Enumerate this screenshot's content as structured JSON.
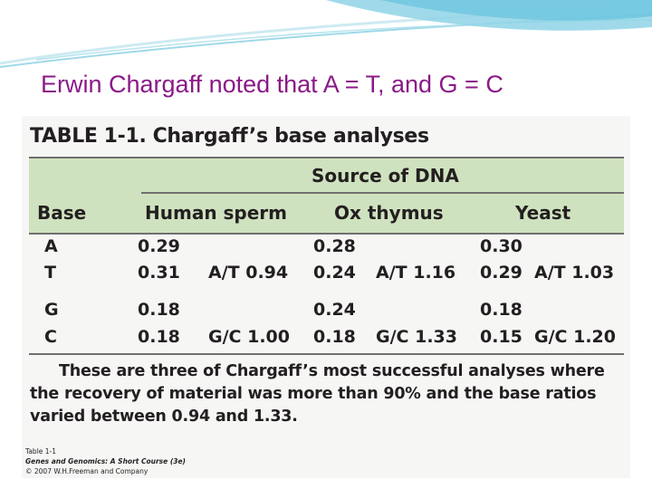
{
  "slide": {
    "title": "Erwin Chargaff noted that A = T, and G = C"
  },
  "table": {
    "label": "TABLE",
    "number": "1-1.",
    "name": "Chargaff’s base analyses",
    "source_header": "Source of DNA",
    "base_header": "Base",
    "columns": [
      "Human sperm",
      "Ox thymus",
      "Yeast"
    ],
    "rows": [
      {
        "base": "A",
        "values": [
          "0.29",
          "0.28",
          "0.30"
        ]
      },
      {
        "base": "T",
        "values": [
          "0.31",
          "0.24",
          "0.29"
        ]
      },
      {
        "base": "G",
        "values": [
          "0.18",
          "0.24",
          "0.18"
        ]
      },
      {
        "base": "C",
        "values": [
          "0.18",
          "0.18",
          "0.15"
        ]
      }
    ],
    "ratios": {
      "at": [
        "A/T 0.94",
        "A/T 1.16",
        "A/T 1.03"
      ],
      "gc": [
        "G/C 1.00",
        "G/C 1.33",
        "G/C 1.20"
      ]
    },
    "caption": "These are three of Chargaff’s most successful analyses where the recovery of material was more than 90% and the base ratios varied between 0.94 and 1.33."
  },
  "credits": {
    "line1": "Table 1-1",
    "line2": "Genes and Genomics: A Short Course (3e)",
    "line3": "© 2007 W.H.Freeman and Company"
  },
  "colors": {
    "title": "#8a1a87",
    "header_band": "#cfe2bf",
    "swoosh": "#8fd3e6"
  }
}
